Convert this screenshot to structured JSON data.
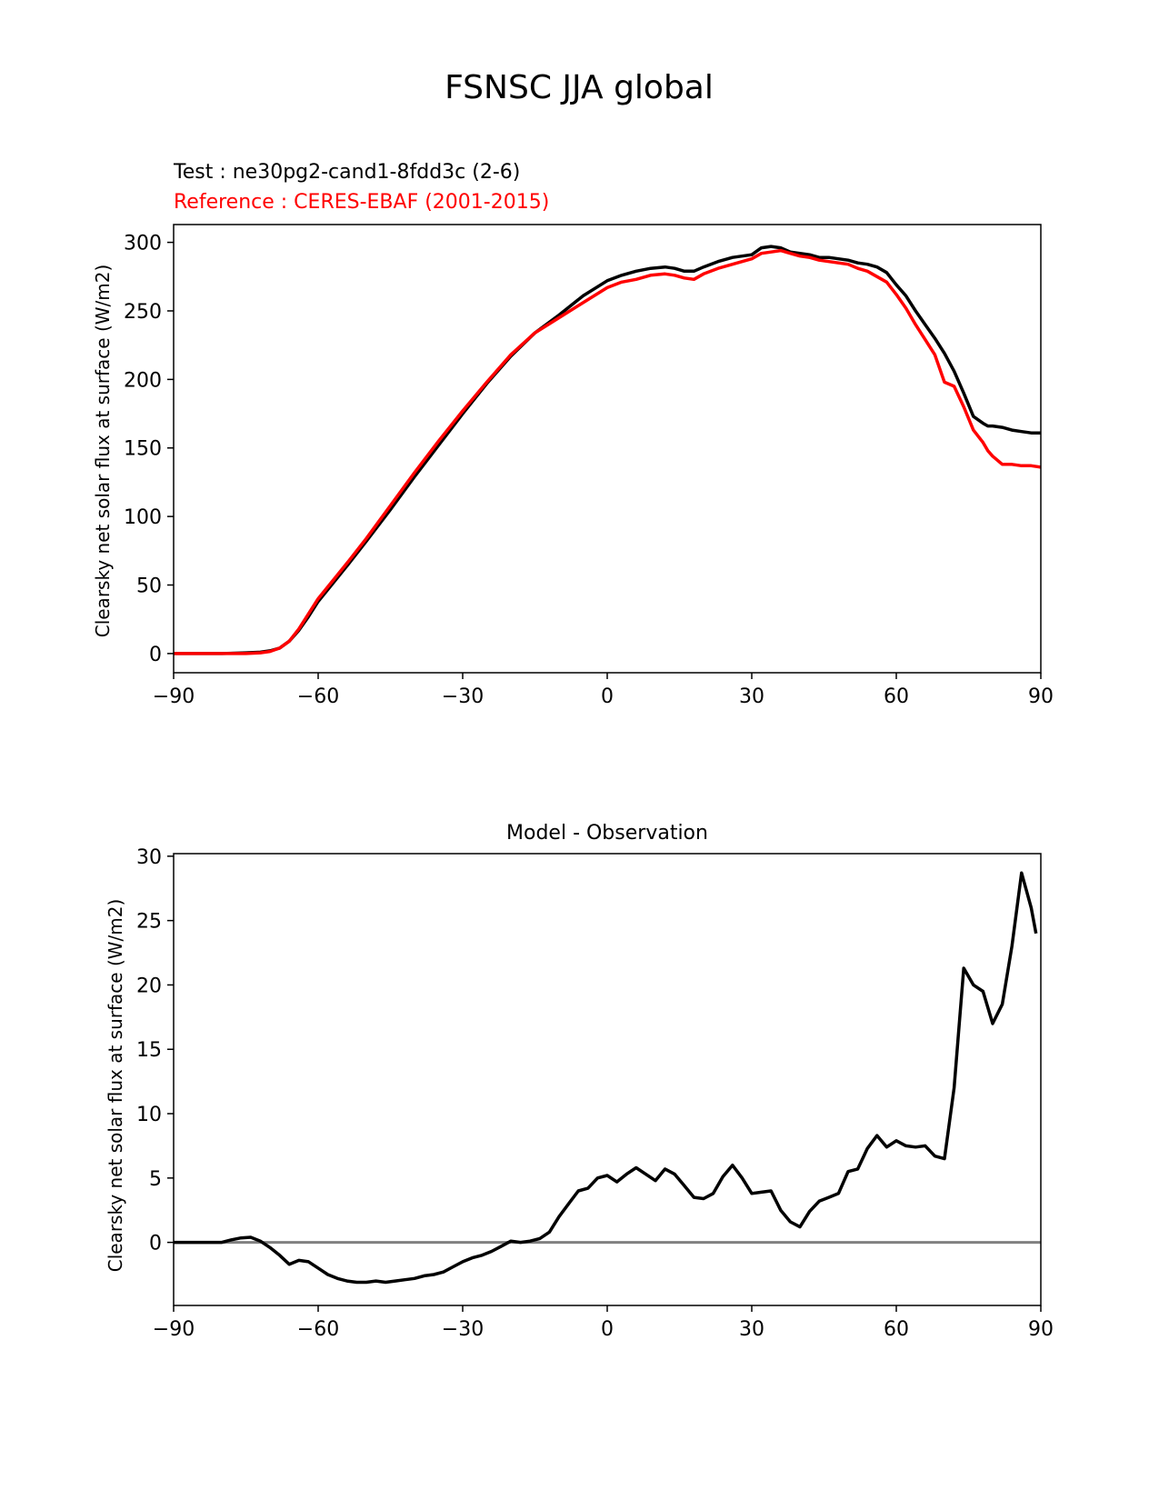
{
  "figure": {
    "title": "FSNSC JJA global"
  },
  "colors": {
    "test": "#000000",
    "reference": "#ff0000",
    "zero_line": "#808080"
  },
  "chart_data": [
    {
      "type": "line",
      "title_test": "Test : ne30pg2-cand1-8fdd3c (2-6)",
      "title_reference": "Reference : CERES-EBAF (2001-2015)",
      "xlabel": "",
      "ylabel": "Clearsky net solar flux at surface (W/m2)",
      "xlim": [
        -90,
        90
      ],
      "ylim": [
        -14,
        313
      ],
      "xticks": [
        -90,
        -60,
        -30,
        0,
        30,
        60,
        90
      ],
      "xtick_labels": [
        "−90",
        "−60",
        "−30",
        "0",
        "30",
        "60",
        "90"
      ],
      "yticks": [
        0,
        50,
        100,
        150,
        200,
        250,
        300
      ],
      "ytick_labels": [
        "0",
        "50",
        "100",
        "150",
        "200",
        "250",
        "300"
      ],
      "grid": false,
      "series": [
        {
          "key": "test",
          "x": [
            -90,
            -85,
            -80,
            -75,
            -72,
            -70,
            -68,
            -66,
            -64,
            -62,
            -60,
            -57,
            -54,
            -50,
            -45,
            -40,
            -35,
            -30,
            -25,
            -20,
            -15,
            -10,
            -5,
            0,
            3,
            6,
            9,
            12,
            14,
            16,
            18,
            20,
            23,
            26,
            28,
            30,
            32,
            34,
            36,
            38,
            40,
            42,
            44,
            46,
            48,
            50,
            52,
            54,
            56,
            58,
            60,
            62,
            64,
            66,
            68,
            70,
            72,
            74,
            76,
            78,
            79,
            80,
            82,
            84,
            86,
            88,
            90
          ],
          "y": [
            0,
            0,
            0,
            0.5,
            1,
            2,
            4,
            9,
            17,
            27,
            38,
            51,
            64,
            82,
            105,
            129,
            152,
            175,
            197,
            217,
            234,
            247,
            261,
            272,
            276,
            279,
            281,
            282,
            281,
            279,
            279,
            282,
            286,
            289,
            290,
            291,
            296,
            297,
            296,
            293,
            292,
            291,
            289,
            289,
            288,
            287,
            285,
            284,
            282,
            278,
            269,
            261,
            250,
            240,
            230,
            219,
            206,
            190,
            173,
            168,
            166,
            166,
            165,
            163,
            162,
            161,
            161
          ]
        },
        {
          "key": "reference",
          "x": [
            -90,
            -85,
            -80,
            -75,
            -72,
            -70,
            -68,
            -66,
            -64,
            -62,
            -60,
            -57,
            -54,
            -50,
            -45,
            -40,
            -35,
            -30,
            -25,
            -20,
            -15,
            -10,
            -5,
            0,
            3,
            6,
            9,
            12,
            14,
            16,
            18,
            20,
            23,
            26,
            28,
            30,
            32,
            34,
            36,
            38,
            40,
            42,
            44,
            46,
            48,
            50,
            52,
            54,
            56,
            58,
            60,
            62,
            64,
            66,
            68,
            70,
            72,
            74,
            76,
            78,
            79,
            80,
            82,
            84,
            86,
            88,
            90
          ],
          "y": [
            0,
            0,
            0,
            0,
            0.5,
            1.5,
            4,
            9,
            18,
            29,
            40,
            53,
            66,
            84,
            108,
            132,
            155,
            177,
            198,
            218,
            234,
            245,
            256,
            267,
            271,
            273,
            276,
            277,
            276,
            274,
            273,
            277,
            281,
            284,
            286,
            288,
            292,
            293,
            294,
            292,
            290,
            289,
            287,
            286,
            285,
            284,
            281,
            279,
            275,
            271,
            262,
            252,
            240,
            229,
            218,
            198,
            195,
            180,
            163,
            154,
            148,
            144,
            138,
            138,
            137,
            137,
            136
          ]
        }
      ]
    },
    {
      "type": "line",
      "title": "Model - Observation",
      "xlabel": "",
      "ylabel": "Clearsky net solar flux at surface (W/m2)",
      "xlim": [
        -90,
        90
      ],
      "ylim": [
        -4.9,
        30.2
      ],
      "xticks": [
        -90,
        -60,
        -30,
        0,
        30,
        60,
        90
      ],
      "xtick_labels": [
        "−90",
        "−60",
        "−30",
        "0",
        "30",
        "60",
        "90"
      ],
      "yticks": [
        0,
        5,
        10,
        15,
        20,
        25,
        30
      ],
      "ytick_labels": [
        "0",
        "5",
        "10",
        "15",
        "20",
        "25",
        "30"
      ],
      "grid": false,
      "zero_line": true,
      "series": [
        {
          "key": "test",
          "x": [
            -90,
            -85,
            -80,
            -78,
            -76,
            -74,
            -72,
            -70,
            -68,
            -66,
            -64,
            -62,
            -60,
            -58,
            -56,
            -54,
            -52,
            -50,
            -48,
            -46,
            -44,
            -42,
            -40,
            -38,
            -36,
            -34,
            -32,
            -30,
            -28,
            -26,
            -24,
            -22,
            -20,
            -18,
            -16,
            -14,
            -12,
            -10,
            -8,
            -6,
            -4,
            -2,
            0,
            2,
            4,
            6,
            8,
            10,
            12,
            14,
            16,
            18,
            20,
            22,
            24,
            26,
            28,
            30,
            32,
            34,
            36,
            38,
            40,
            42,
            44,
            46,
            48,
            50,
            52,
            54,
            56,
            58,
            60,
            62,
            64,
            66,
            68,
            70,
            72,
            74,
            76,
            78,
            80,
            82,
            84,
            86,
            88,
            89
          ],
          "y": [
            0,
            0,
            0,
            0.2,
            0.35,
            0.4,
            0.1,
            -0.4,
            -1.0,
            -1.7,
            -1.4,
            -1.5,
            -2.0,
            -2.5,
            -2.8,
            -3.0,
            -3.1,
            -3.1,
            -3.0,
            -3.1,
            -3.0,
            -2.9,
            -2.8,
            -2.6,
            -2.5,
            -2.3,
            -1.9,
            -1.5,
            -1.2,
            -1.0,
            -0.7,
            -0.3,
            0.1,
            0.0,
            0.1,
            0.3,
            0.8,
            2.0,
            3.0,
            4.0,
            4.2,
            5.0,
            5.2,
            4.7,
            5.3,
            5.8,
            5.3,
            4.8,
            5.7,
            5.3,
            4.4,
            3.5,
            3.4,
            3.8,
            5.1,
            6.0,
            5.0,
            3.8,
            3.9,
            4.0,
            2.5,
            1.6,
            1.2,
            2.4,
            3.2,
            3.5,
            3.8,
            5.5,
            5.7,
            7.3,
            8.3,
            7.4,
            7.9,
            7.5,
            7.4,
            7.5,
            6.7,
            6.5,
            12.0,
            21.3,
            20.0,
            19.5,
            17.0,
            18.5,
            23.0,
            28.7,
            26.0,
            24.0
          ]
        }
      ]
    }
  ]
}
